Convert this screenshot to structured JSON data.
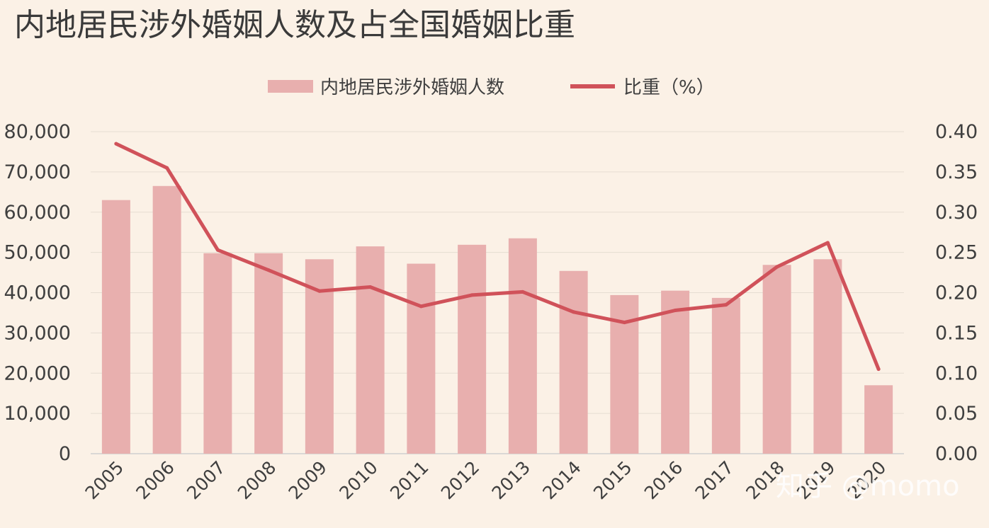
{
  "chart_data": {
    "type": "bar",
    "title": "内地居民涉外婚姻人数及占全国婚姻比重",
    "categories": [
      "2005",
      "2006",
      "2007",
      "2008",
      "2009",
      "2010",
      "2011",
      "2012",
      "2013",
      "2014",
      "2015",
      "2016",
      "2017",
      "2018",
      "2019",
      "2020"
    ],
    "series": [
      {
        "name": "内地居民涉外婚姻人数",
        "type": "bar",
        "axis": "left",
        "color": "#e8afae",
        "values": [
          63000,
          66500,
          49800,
          49800,
          48300,
          51500,
          47200,
          51900,
          53500,
          45400,
          39400,
          40500,
          38700,
          46900,
          48300,
          17000
        ]
      },
      {
        "name": "比重（%）",
        "type": "line",
        "axis": "right",
        "color": "#d0525a",
        "values": [
          0.385,
          0.355,
          0.253,
          0.228,
          0.202,
          0.207,
          0.183,
          0.197,
          0.201,
          0.176,
          0.163,
          0.178,
          0.185,
          0.232,
          0.262,
          0.105
        ]
      }
    ],
    "y_left": {
      "ylim": [
        0,
        80000
      ],
      "ticks": [
        "0",
        "10,000",
        "20,000",
        "30,000",
        "40,000",
        "50,000",
        "60,000",
        "70,000",
        "80,000"
      ]
    },
    "y_right": {
      "ylim": [
        0,
        0.4
      ],
      "ticks": [
        "0.00",
        "0.05",
        "0.10",
        "0.15",
        "0.20",
        "0.25",
        "0.30",
        "0.35",
        "0.40"
      ]
    },
    "grid": true,
    "legend_position": "top"
  },
  "watermark": "知乎 @momo"
}
